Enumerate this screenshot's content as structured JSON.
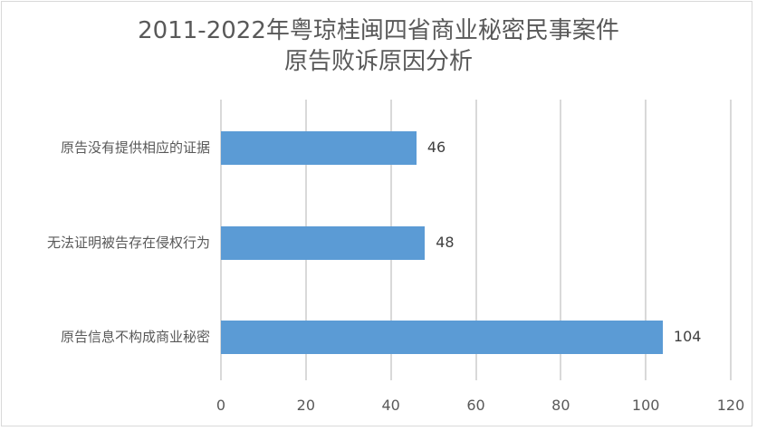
{
  "chart_data": {
    "type": "bar",
    "orientation": "horizontal",
    "title": "2011-2022年粤琼桂闽四省商业秘密民事案件 原告败诉原因分析",
    "title_lines": [
      "2011-2022年粤琼桂闽四省商业秘密民事案件",
      "原告败诉原因分析"
    ],
    "categories": [
      "原告没有提供相应的证据",
      "无法证明被告存在侵权行为",
      "原告信息不构成商业秘密"
    ],
    "values": [
      46,
      48,
      104
    ],
    "data_labels": [
      "46",
      "48",
      "104"
    ],
    "xlabel": "",
    "ylabel": "",
    "xlim": [
      0,
      120
    ],
    "x_ticks": [
      "0",
      "20",
      "40",
      "60",
      "80",
      "100",
      "120"
    ],
    "grid": true,
    "legend": null,
    "bar_color": "#5b9bd5"
  }
}
